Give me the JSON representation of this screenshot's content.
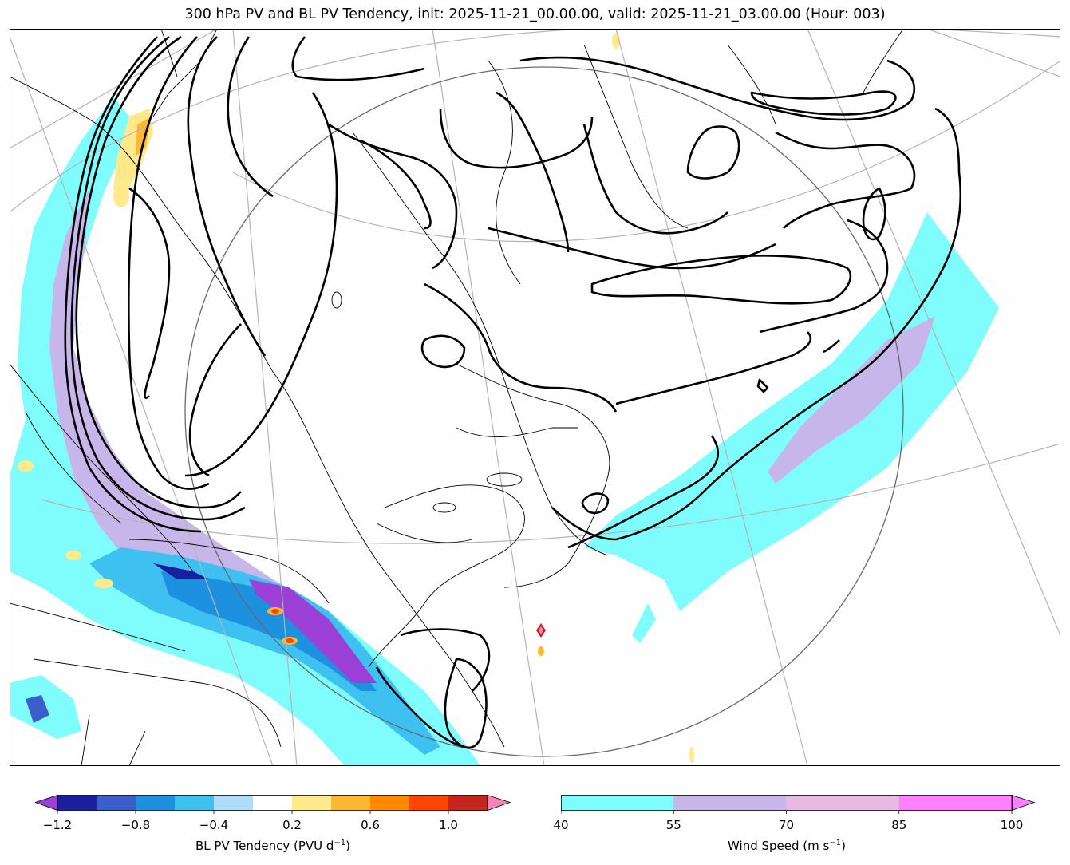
{
  "title": "300 hPa PV and BL PV Tendency, init: 2025-11-21_00.00.00, valid: 2025-11-21_03.00.00 (Hour: 003)",
  "colorbars": {
    "pv_tendency": {
      "label": "BL PV Tendency (PVU d",
      "label_exp": "−1",
      "label_end": ")",
      "ticks": [
        "−1.2",
        "−0.8",
        "−0.4",
        "0.2",
        "0.6",
        "1.0"
      ],
      "tick_values": [
        -1.2,
        -0.8,
        -0.4,
        0.2,
        0.6,
        1.0
      ],
      "levels": [
        -1.2,
        -1.0,
        -0.8,
        -0.6,
        -0.4,
        -0.2,
        0.2,
        0.4,
        0.6,
        0.8,
        1.0,
        1.2
      ],
      "colors": [
        "#9b3fd6",
        "#1a1f9e",
        "#3a5fcd",
        "#1e90e0",
        "#3ec0f0",
        "#b0dcfb",
        "#ffffff",
        "#ffe98a",
        "#ffb732",
        "#ff8a00",
        "#ff4500",
        "#c4261d",
        "#f784b8"
      ],
      "extend": "both"
    },
    "wind_speed": {
      "label": "Wind Speed (m s",
      "label_exp": "−1",
      "label_end": ")",
      "ticks": [
        "40",
        "55",
        "70",
        "85",
        "100"
      ],
      "tick_values": [
        40,
        55,
        70,
        85,
        100
      ],
      "colors": [
        "#7ffdfd",
        "#c7b6ea",
        "#e8b9e3",
        "#ff80ff"
      ],
      "extend": "max"
    }
  }
}
